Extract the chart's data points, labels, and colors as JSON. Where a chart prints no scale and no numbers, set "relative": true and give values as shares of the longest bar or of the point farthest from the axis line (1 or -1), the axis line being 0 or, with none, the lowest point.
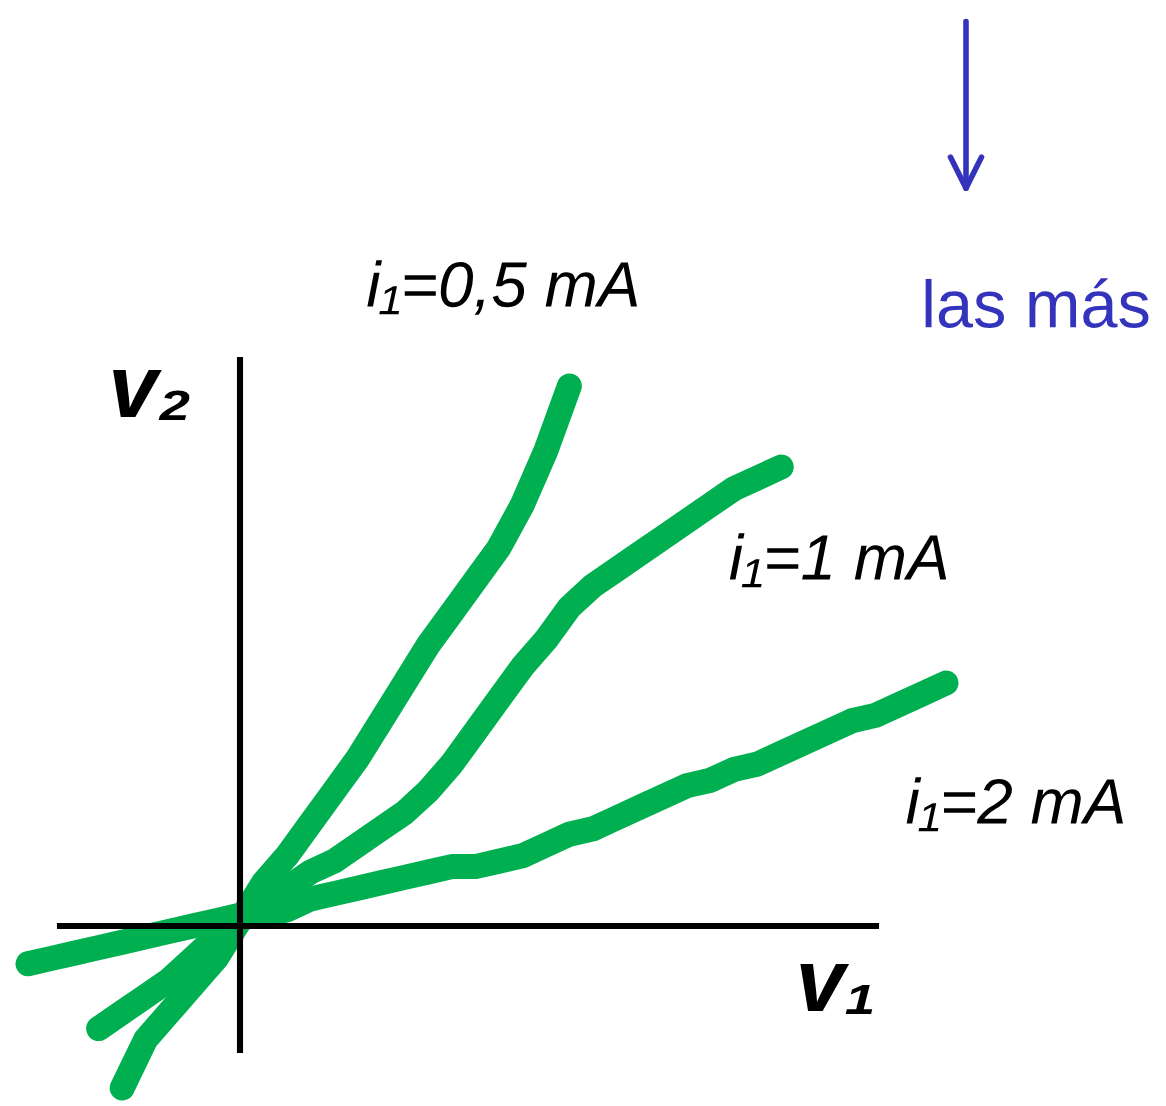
{
  "chart_data": {
    "type": "line",
    "relative": true,
    "xlabel": "v₁",
    "ylabel": "v₂",
    "annotations": [
      "las más"
    ],
    "legend": false,
    "line_style": "solid",
    "categories": [
      null,
      null,
      null,
      null,
      null,
      null,
      null,
      null,
      null,
      null,
      null,
      null,
      null,
      null,
      null,
      null,
      null,
      null,
      null,
      null,
      null,
      null,
      null,
      null,
      null,
      null,
      null,
      null,
      null,
      null,
      null,
      null,
      null,
      null,
      null,
      null,
      null,
      null,
      null,
      null
    ],
    "series": [
      {
        "name": "i₁=0,5 mA",
        "color": "#00b050",
        "values": [
          null,
          null,
          null,
          null,
          -0.3,
          -0.21,
          -0.16,
          -0.11,
          -0.06,
          0.01,
          0.08,
          0.13,
          0.19,
          0.25,
          0.31,
          0.38,
          0.45,
          0.52,
          0.58,
          0.64,
          0.7,
          0.78,
          0.88,
          1.0,
          null,
          null,
          null,
          null,
          null,
          null,
          null,
          null,
          null,
          null,
          null,
          null,
          null,
          null,
          null,
          null
        ]
      },
      {
        "name": "i₁=1 mA",
        "color": "#00b050",
        "values": [
          null,
          null,
          null,
          -0.19,
          -0.16,
          -0.13,
          -0.1,
          -0.06,
          -0.02,
          0.01,
          0.04,
          0.07,
          0.1,
          0.12,
          0.15,
          0.18,
          0.21,
          0.25,
          0.3,
          0.36,
          0.42,
          0.48,
          0.53,
          0.59,
          0.63,
          0.66,
          0.69,
          0.72,
          0.75,
          0.78,
          0.81,
          0.83,
          0.85,
          null,
          null,
          null,
          null,
          null,
          null,
          null
        ]
      },
      {
        "name": "i₁=2 mA",
        "color": "#00b050",
        "values": [
          -0.07,
          -0.06,
          -0.05,
          -0.04,
          -0.03,
          -0.02,
          -0.01,
          0.0,
          0.01,
          0.02,
          0.02,
          0.03,
          0.05,
          0.06,
          0.07,
          0.08,
          0.09,
          0.1,
          0.11,
          0.11,
          0.12,
          0.13,
          0.15,
          0.17,
          0.18,
          0.2,
          0.22,
          0.24,
          0.26,
          0.27,
          0.29,
          0.3,
          0.32,
          0.34,
          0.36,
          0.38,
          0.39,
          0.41,
          0.43,
          0.45
        ]
      }
    ]
  }
}
